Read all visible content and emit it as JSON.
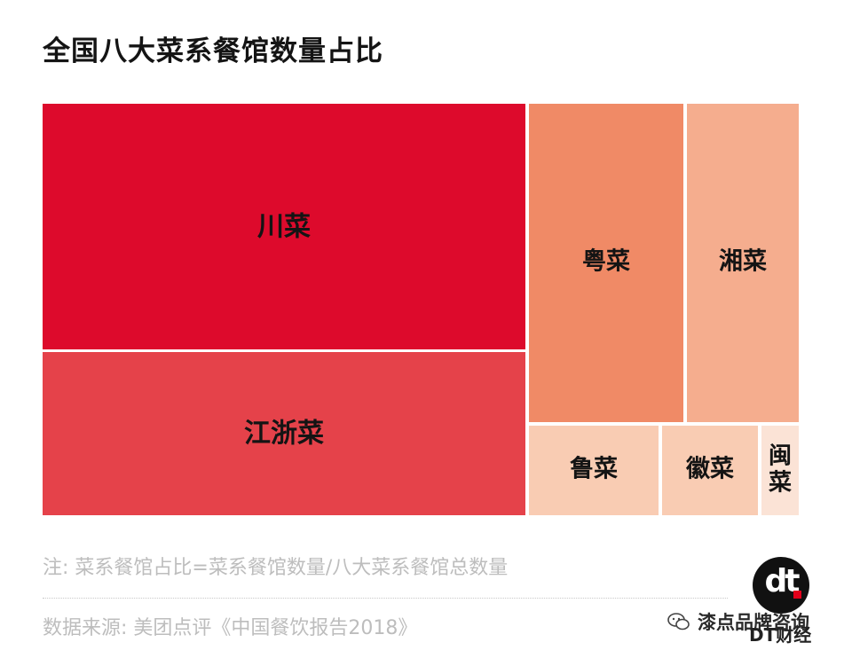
{
  "title": "全国八大菜系餐馆数量占比",
  "chart_data": {
    "type": "treemap",
    "title": "全国八大菜系餐馆数量占比",
    "items": [
      {
        "name": "川菜",
        "value": 34.5,
        "color": "#dd0a2c"
      },
      {
        "name": "江浙菜",
        "value": 24.6,
        "color": "#e5424a"
      },
      {
        "name": "粤菜",
        "value": 14.0,
        "color": "#f08a66"
      },
      {
        "name": "湘菜",
        "value": 9.8,
        "color": "#f5ad8e"
      },
      {
        "name": "鲁菜",
        "value": 6.8,
        "color": "#f9ccb3"
      },
      {
        "name": "徽菜",
        "value": 5.3,
        "color": "#f9ccb3"
      },
      {
        "name": "闽菜",
        "value": 2.1,
        "color": "#fbe3d6"
      }
    ]
  },
  "note": "注: 菜系餐馆占比=菜系餐馆数量/八大菜系餐馆总数量",
  "source": "数据来源: 美团点评《中国餐饮报告2018》",
  "watermark": {
    "text": "漆点品牌咨询",
    "brand": "DT财经",
    "logo": "dt"
  }
}
